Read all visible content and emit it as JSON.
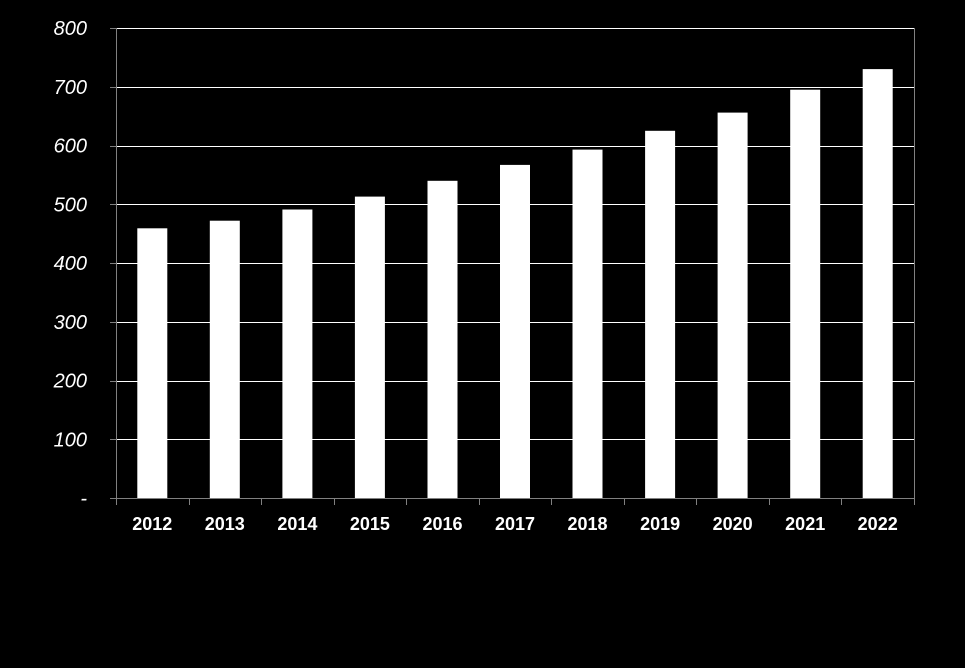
{
  "chart_data": {
    "type": "bar",
    "title": "",
    "xlabel": "",
    "ylabel": "",
    "categories": [
      "2012",
      "2013",
      "2014",
      "2015",
      "2016",
      "2017",
      "2018",
      "2019",
      "2020",
      "2021",
      "2022"
    ],
    "series": [
      {
        "values": [
          459,
          472,
          491,
          513,
          540,
          567,
          593,
          625,
          656,
          695,
          730
        ]
      }
    ],
    "ylim": [
      0,
      800
    ],
    "y_ticks": [
      0,
      100,
      200,
      300,
      400,
      500,
      600,
      700,
      800
    ],
    "y_tick_labels": [
      "-",
      "100",
      "200",
      "300",
      "400",
      "500",
      "600",
      "700",
      "800"
    ],
    "grid": true,
    "legend": "none",
    "colors": {
      "background": "#000000",
      "bar": "#ffffff",
      "gridline": "#ffffff",
      "axis": "#808080",
      "text": "#ffffff"
    }
  }
}
